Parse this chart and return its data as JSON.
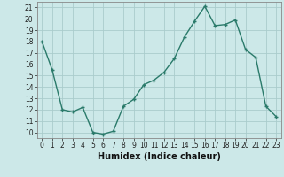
{
  "x": [
    0,
    1,
    2,
    3,
    4,
    5,
    6,
    7,
    8,
    9,
    10,
    11,
    12,
    13,
    14,
    15,
    16,
    17,
    18,
    19,
    20,
    21,
    22,
    23
  ],
  "y": [
    18,
    15.5,
    12,
    11.8,
    12.2,
    10,
    9.85,
    10.1,
    12.3,
    12.9,
    14.2,
    14.6,
    15.3,
    16.5,
    18.4,
    19.8,
    21.1,
    19.4,
    19.5,
    19.9,
    17.3,
    16.6,
    12.3,
    11.4
  ],
  "line_color": "#2a7a6a",
  "marker": "+",
  "bg_color": "#cce8e8",
  "grid_color": "#aacccc",
  "xlabel": "Humidex (Indice chaleur)",
  "ylim": [
    9.5,
    21.5
  ],
  "xlim": [
    -0.5,
    23.5
  ],
  "yticks": [
    10,
    11,
    12,
    13,
    14,
    15,
    16,
    17,
    18,
    19,
    20,
    21
  ],
  "xticks": [
    0,
    1,
    2,
    3,
    4,
    5,
    6,
    7,
    8,
    9,
    10,
    11,
    12,
    13,
    14,
    15,
    16,
    17,
    18,
    19,
    20,
    21,
    22,
    23
  ],
  "tick_fontsize": 5.5,
  "label_fontsize": 7.0,
  "line_width": 1.0,
  "marker_size": 3.5,
  "marker_edge_width": 1.0
}
